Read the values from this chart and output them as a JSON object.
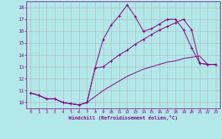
{
  "xlabel": "Windchill (Refroidissement éolien,°C)",
  "background_color": "#b2e8e8",
  "grid_color": "#b0b0b0",
  "line_color": "#880088",
  "xlim": [
    -0.5,
    23.5
  ],
  "ylim": [
    9.5,
    18.5
  ],
  "yticks": [
    10,
    11,
    12,
    13,
    14,
    15,
    16,
    17,
    18
  ],
  "xticks": [
    0,
    1,
    2,
    3,
    4,
    5,
    6,
    7,
    8,
    9,
    10,
    11,
    12,
    13,
    14,
    15,
    16,
    17,
    18,
    19,
    20,
    21,
    22,
    23
  ],
  "line1_x": [
    0,
    1,
    2,
    3,
    4,
    5,
    6,
    7,
    8,
    9,
    10,
    11,
    12,
    13,
    14,
    15,
    16,
    17,
    18,
    19,
    20,
    21,
    22,
    23
  ],
  "line1_y": [
    10.8,
    10.6,
    10.3,
    10.3,
    10.0,
    9.9,
    9.8,
    10.0,
    12.9,
    15.3,
    16.5,
    17.3,
    18.2,
    17.2,
    16.0,
    16.2,
    16.6,
    17.0,
    17.0,
    16.1,
    14.6,
    13.3,
    13.2,
    13.2
  ],
  "line2_x": [
    0,
    1,
    2,
    3,
    4,
    5,
    6,
    7,
    8,
    9,
    10,
    11,
    12,
    13,
    14,
    15,
    16,
    17,
    18,
    19,
    20,
    21,
    22,
    23
  ],
  "line2_y": [
    10.8,
    10.6,
    10.3,
    10.3,
    10.0,
    9.9,
    9.8,
    10.0,
    12.9,
    13.0,
    13.5,
    14.0,
    14.4,
    14.9,
    15.3,
    15.7,
    16.1,
    16.4,
    16.7,
    17.0,
    16.1,
    13.3,
    13.2,
    13.2
  ],
  "line3_x": [
    0,
    1,
    2,
    3,
    4,
    5,
    6,
    7,
    8,
    9,
    10,
    11,
    12,
    13,
    14,
    15,
    16,
    17,
    18,
    19,
    20,
    21,
    22,
    23
  ],
  "line3_y": [
    10.8,
    10.6,
    10.3,
    10.3,
    10.0,
    9.9,
    9.8,
    10.0,
    10.5,
    11.0,
    11.4,
    11.8,
    12.2,
    12.5,
    12.8,
    13.0,
    13.2,
    13.4,
    13.5,
    13.7,
    13.8,
    13.9,
    13.2,
    13.2
  ]
}
